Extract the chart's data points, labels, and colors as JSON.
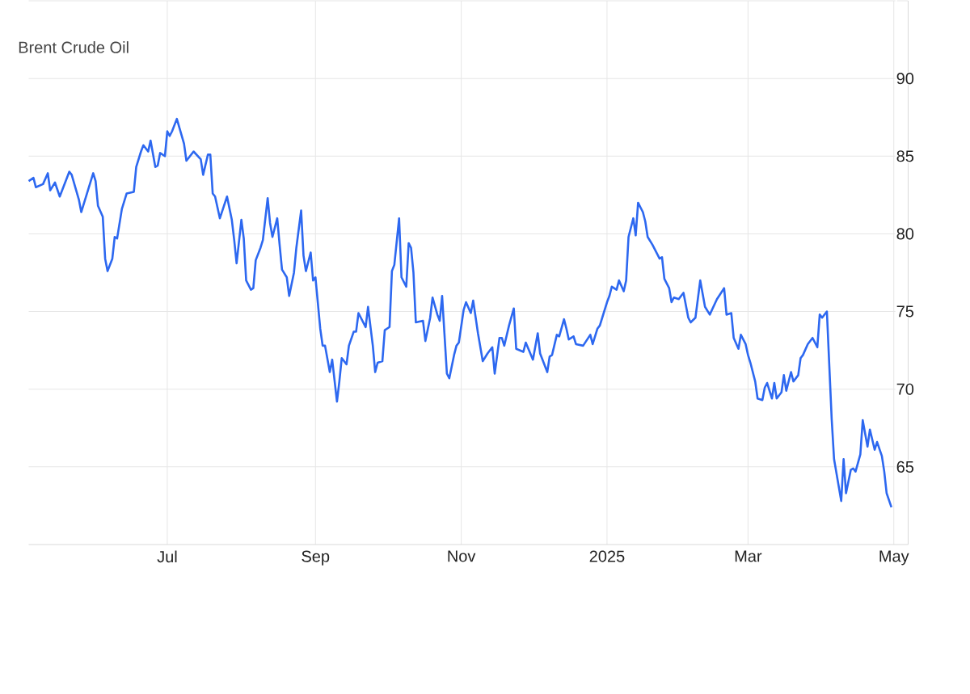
{
  "chart_data": {
    "type": "line",
    "title": "Brent Crude Oil",
    "x": [
      "2024-05-04",
      "2024-05-06",
      "2024-05-07",
      "2024-05-10",
      "2024-05-12",
      "2024-05-13",
      "2024-05-15",
      "2024-05-17",
      "2024-05-21",
      "2024-05-22",
      "2024-05-25",
      "2024-05-26",
      "2024-05-31",
      "2024-06-01",
      "2024-06-02",
      "2024-06-04",
      "2024-06-05",
      "2024-06-06",
      "2024-06-08",
      "2024-06-09",
      "2024-06-10",
      "2024-06-12",
      "2024-06-14",
      "2024-06-17",
      "2024-06-18",
      "2024-06-20",
      "2024-06-21",
      "2024-06-23",
      "2024-06-24",
      "2024-06-26",
      "2024-06-27",
      "2024-06-28",
      "2024-06-30",
      "2024-07-01",
      "2024-07-02",
      "2024-07-03",
      "2024-07-05",
      "2024-07-08",
      "2024-07-09",
      "2024-07-12",
      "2024-07-15",
      "2024-07-16",
      "2024-07-18",
      "2024-07-19",
      "2024-07-20",
      "2024-07-21",
      "2024-07-23",
      "2024-07-26",
      "2024-07-28",
      "2024-07-29",
      "2024-07-30",
      "2024-08-01",
      "2024-08-02",
      "2024-08-03",
      "2024-08-05",
      "2024-08-06",
      "2024-08-07",
      "2024-08-09",
      "2024-08-10",
      "2024-08-12",
      "2024-08-13",
      "2024-08-14",
      "2024-08-16",
      "2024-08-17",
      "2024-08-18",
      "2024-08-20",
      "2024-08-21",
      "2024-08-23",
      "2024-08-24",
      "2024-08-26",
      "2024-08-27",
      "2024-08-28",
      "2024-08-30",
      "2024-08-31",
      "2024-09-01",
      "2024-09-03",
      "2024-09-04",
      "2024-09-05",
      "2024-09-07",
      "2024-09-08",
      "2024-09-10",
      "2024-09-11",
      "2024-09-12",
      "2024-09-14",
      "2024-09-15",
      "2024-09-17",
      "2024-09-18",
      "2024-09-19",
      "2024-09-22",
      "2024-09-23",
      "2024-09-25",
      "2024-09-26",
      "2024-09-27",
      "2024-09-29",
      "2024-09-30",
      "2024-10-02",
      "2024-10-03",
      "2024-10-04",
      "2024-10-06",
      "2024-10-07",
      "2024-10-09",
      "2024-10-10",
      "2024-10-11",
      "2024-10-12",
      "2024-10-13",
      "2024-10-16",
      "2024-10-17",
      "2024-10-19",
      "2024-10-20",
      "2024-10-22",
      "2024-10-23",
      "2024-10-24",
      "2024-10-26",
      "2024-10-27",
      "2024-10-29",
      "2024-10-30",
      "2024-10-31",
      "2024-11-02",
      "2024-11-03",
      "2024-11-05",
      "2024-11-06",
      "2024-11-08",
      "2024-11-10",
      "2024-11-12",
      "2024-11-14",
      "2024-11-15",
      "2024-11-17",
      "2024-11-18",
      "2024-11-19",
      "2024-11-21",
      "2024-11-23",
      "2024-11-24",
      "2024-11-27",
      "2024-11-28",
      "2024-12-01",
      "2024-12-03",
      "2024-12-04",
      "2024-12-07",
      "2024-12-08",
      "2024-12-09",
      "2024-12-11",
      "2024-12-12",
      "2024-12-14",
      "2024-12-15",
      "2024-12-16",
      "2024-12-18",
      "2024-12-19",
      "2024-12-22",
      "2024-12-25",
      "2024-12-26",
      "2024-12-28",
      "2024-12-29",
      "2024-12-30",
      "2025-01-01",
      "2025-01-02",
      "2025-01-03",
      "2025-01-05",
      "2025-01-06",
      "2025-01-08",
      "2025-01-09",
      "2025-01-10",
      "2025-01-12",
      "2025-01-13",
      "2025-01-14",
      "2025-01-16",
      "2025-01-17",
      "2025-01-18",
      "2025-01-20",
      "2025-01-21",
      "2025-01-23",
      "2025-01-24",
      "2025-01-25",
      "2025-01-27",
      "2025-01-28",
      "2025-01-29",
      "2025-01-31",
      "2025-02-01",
      "2025-02-02",
      "2025-02-04",
      "2025-02-05",
      "2025-02-07",
      "2025-02-08",
      "2025-02-09",
      "2025-02-11",
      "2025-02-13",
      "2025-02-16",
      "2025-02-19",
      "2025-02-20",
      "2025-02-22",
      "2025-02-23",
      "2025-02-25",
      "2025-02-26",
      "2025-02-28",
      "2025-03-01",
      "2025-03-02",
      "2025-03-04",
      "2025-03-05",
      "2025-03-07",
      "2025-03-08",
      "2025-03-09",
      "2025-03-11",
      "2025-03-12",
      "2025-03-13",
      "2025-03-15",
      "2025-03-16",
      "2025-03-17",
      "2025-03-19",
      "2025-03-20",
      "2025-03-22",
      "2025-03-23",
      "2025-03-24",
      "2025-03-26",
      "2025-03-28",
      "2025-03-30",
      "2025-03-31",
      "2025-04-01",
      "2025-04-03",
      "2025-04-05",
      "2025-04-06",
      "2025-04-09",
      "2025-04-10",
      "2025-04-11",
      "2025-04-13",
      "2025-04-14",
      "2025-04-15",
      "2025-04-17",
      "2025-04-18",
      "2025-04-20",
      "2025-04-21",
      "2025-04-23",
      "2025-04-24",
      "2025-04-26",
      "2025-04-27",
      "2025-04-28",
      "2025-04-30"
    ],
    "series": [
      {
        "color": "#2d68f0",
        "values": [
          83.4,
          83.6,
          83.0,
          83.2,
          83.9,
          82.8,
          83.3,
          82.4,
          84.0,
          83.8,
          82.2,
          81.4,
          83.9,
          83.4,
          81.8,
          81.1,
          78.4,
          77.6,
          78.4,
          79.8,
          79.7,
          81.6,
          82.6,
          82.7,
          84.3,
          85.3,
          85.7,
          85.3,
          86.0,
          84.3,
          84.4,
          85.2,
          85.0,
          86.6,
          86.3,
          86.6,
          87.4,
          85.8,
          84.7,
          85.3,
          84.8,
          83.8,
          85.1,
          85.1,
          82.6,
          82.4,
          81.0,
          82.4,
          80.9,
          79.6,
          78.1,
          80.9,
          79.7,
          77.0,
          76.4,
          76.5,
          78.3,
          79.1,
          79.6,
          82.3,
          80.7,
          79.8,
          81.0,
          79.3,
          77.7,
          77.2,
          76.0,
          77.5,
          79.1,
          81.5,
          78.6,
          77.6,
          78.8,
          77.0,
          77.2,
          73.9,
          72.8,
          72.8,
          71.1,
          71.9,
          69.2,
          70.5,
          72.0,
          71.6,
          72.8,
          73.7,
          73.7,
          74.9,
          74.0,
          75.3,
          72.8,
          71.1,
          71.7,
          71.8,
          73.8,
          74.0,
          77.6,
          78.0,
          81.0,
          77.2,
          76.6,
          79.4,
          79.1,
          77.5,
          74.3,
          74.4,
          73.1,
          74.6,
          75.9,
          74.8,
          74.4,
          76.0,
          71.0,
          70.7,
          72.2,
          72.8,
          73.0,
          75.1,
          75.6,
          74.9,
          75.7,
          73.6,
          71.8,
          72.3,
          72.7,
          71.0,
          73.3,
          73.3,
          72.8,
          74.1,
          75.2,
          72.6,
          72.4,
          73.0,
          71.9,
          73.6,
          72.3,
          71.1,
          72.1,
          72.2,
          73.5,
          73.4,
          74.5,
          73.9,
          73.2,
          73.4,
          72.9,
          72.8,
          73.5,
          72.9,
          73.9,
          74.1,
          74.6,
          75.6,
          76.0,
          76.6,
          76.4,
          77.0,
          76.3,
          77.0,
          79.8,
          81.0,
          79.9,
          82.0,
          81.4,
          80.8,
          79.8,
          79.3,
          79.0,
          78.4,
          78.5,
          77.1,
          76.5,
          75.6,
          75.9,
          75.8,
          76.0,
          76.2,
          74.6,
          74.3,
          74.6,
          75.8,
          77.0,
          75.3,
          74.8,
          75.8,
          76.5,
          74.8,
          74.9,
          73.3,
          72.6,
          73.5,
          72.9,
          72.2,
          71.7,
          70.5,
          69.4,
          69.3,
          70.1,
          70.4,
          69.4,
          70.4,
          69.4,
          69.8,
          70.9,
          69.9,
          71.1,
          70.5,
          70.9,
          72.0,
          72.2,
          72.9,
          73.3,
          72.7,
          74.8,
          74.6,
          75.0,
          68.1,
          65.5,
          62.8,
          65.5,
          63.3,
          64.8,
          64.9,
          64.7,
          65.8,
          68.0,
          66.3,
          67.4,
          66.1,
          66.6,
          65.7,
          64.7,
          63.3,
          62.4
        ]
      }
    ],
    "xlim": [
      "2024-05-04",
      "2025-05-07"
    ],
    "xticks": [
      {
        "value": "2024-07-01",
        "label": "Jul"
      },
      {
        "value": "2024-09-01",
        "label": "Sep"
      },
      {
        "value": "2024-11-01",
        "label": "Nov"
      },
      {
        "value": "2025-01-01",
        "label": "2025"
      },
      {
        "value": "2025-03-01",
        "label": "Mar"
      },
      {
        "value": "2025-05-01",
        "label": "May"
      }
    ],
    "ylim": [
      60,
      95
    ],
    "yticks": [
      65,
      70,
      75,
      80,
      85,
      90,
      {
        "value": 95,
        "label": null
      }
    ],
    "grid": true
  }
}
